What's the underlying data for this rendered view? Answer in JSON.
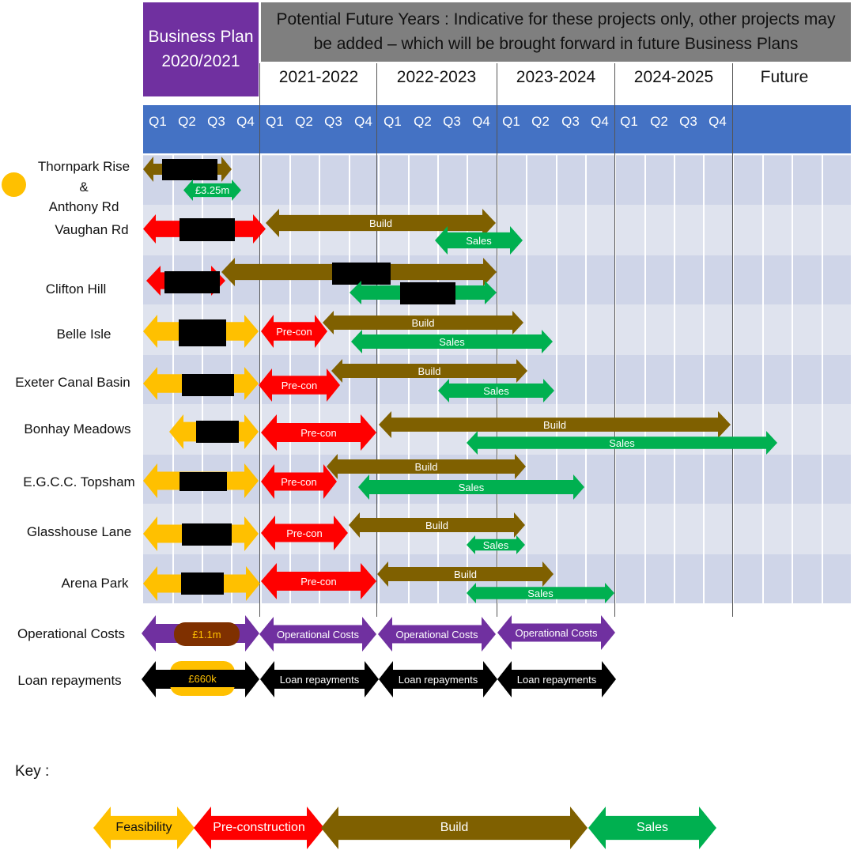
{
  "header": {
    "business_plan": "Business Plan\n2020/2021",
    "potential_future": "Potential Future Years : Indicative for these projects only, other projects may be added – which will be brought forward in future Business Plans",
    "years": [
      "2021-2022",
      "2022-2023",
      "2023-2024",
      "2024-2025",
      "Future"
    ],
    "quarters": [
      "Q1",
      "Q2",
      "Q3",
      "Q4",
      "Q1",
      "Q2",
      "Q3",
      "Q4",
      "Q1",
      "Q2",
      "Q3",
      "Q4",
      "Q1",
      "Q2",
      "Q3",
      "Q4",
      "Q1",
      "Q2",
      "Q3",
      "Q4"
    ]
  },
  "projects": [
    "Thornpark Rise &\nAnthony Rd",
    "Vaughan Rd",
    "Clifton Hill",
    "Belle Isle",
    "Exeter Canal Basin",
    "Bonhay Meadows",
    "E.G.C.C. Topsham",
    "Glasshouse Lane",
    "Arena Park",
    "Operational Costs",
    "Loan repayments"
  ],
  "labels": {
    "build": "Build",
    "sales": "Sales",
    "precon": "Pre-con",
    "opcosts": "Operational Costs",
    "loan": "Loan repayments",
    "thornpark_value": "£3.25m",
    "opcost_value": "£1.1m",
    "loan_value": "£660k"
  },
  "key": {
    "title": "Key :",
    "items": [
      "Feasibility",
      "Pre-construction",
      "Build",
      "Sales"
    ]
  },
  "colors": {
    "feasibility": "#ffc000",
    "precon": "#ff0000",
    "build": "#7f6000",
    "sales": "#00b050",
    "operational": "#7030a0",
    "loan": "#000000",
    "quarter_bar": "#4472c4",
    "business_plan": "#7030a0",
    "future_box": "#7f7f7f"
  }
}
